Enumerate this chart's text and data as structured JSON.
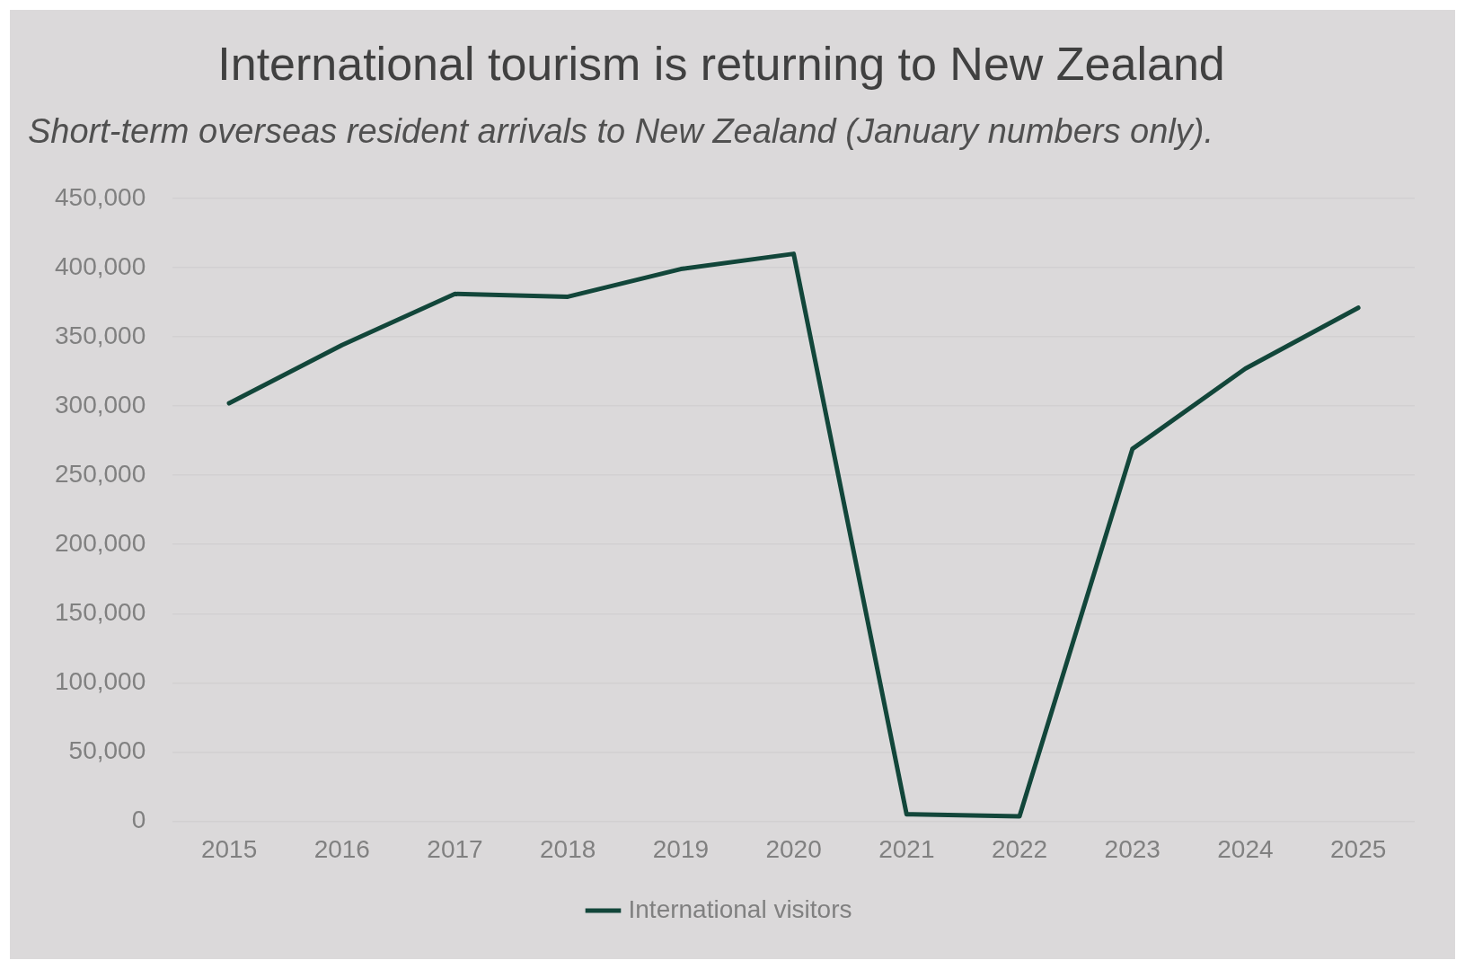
{
  "chart_data": {
    "type": "line",
    "title": "International tourism is returning to New Zealand",
    "subtitle": "Short-term overseas resident arrivals to New Zealand (January numbers only).",
    "categories": [
      "2015",
      "2016",
      "2017",
      "2018",
      "2019",
      "2020",
      "2021",
      "2022",
      "2023",
      "2024",
      "2025"
    ],
    "series": [
      {
        "name": "International visitors",
        "color": "#12463a",
        "values": [
          302000,
          344000,
          381000,
          379000,
          399000,
          410000,
          5000,
          3500,
          269000,
          327000,
          371000
        ]
      }
    ],
    "ylim": [
      0,
      450000
    ],
    "yticks": [
      0,
      {
        "value": 50000,
        "label": "50,000"
      },
      {
        "value": 100000,
        "label": "100,000"
      },
      {
        "value": 150000,
        "label": "150,000"
      },
      {
        "value": 200000,
        "label": "200,000"
      },
      {
        "value": 250000,
        "label": "250,000"
      },
      {
        "value": 300000,
        "label": "300,000"
      },
      {
        "value": 350000,
        "label": "350,000"
      },
      {
        "value": 400000,
        "label": "400,000"
      },
      {
        "value": 450000,
        "label": "450,000"
      }
    ],
    "grid": "y",
    "legend": "bottom",
    "marker": "none",
    "line_style": "solid"
  }
}
